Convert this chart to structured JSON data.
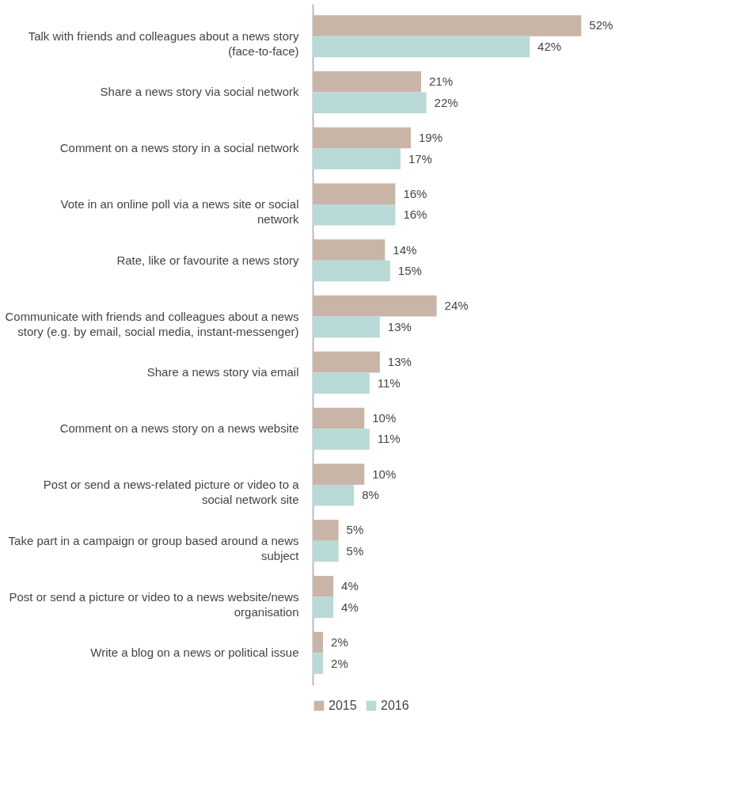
{
  "chart_data": {
    "type": "bar",
    "orientation": "horizontal",
    "data_labels": true,
    "legend": "bottom",
    "grid": false,
    "categories": [
      "Talk with friends and colleagues about a news story (face-to-face)",
      "Share a news story via social network",
      "Comment on a news story in a social network",
      "Vote in an online poll via a news site or social network",
      "Rate, like or favourite a news story",
      "Communicate with friends and colleagues about a news story (e.g. by email, social media, instant-messenger)",
      "Share a news story via email",
      "Comment on a news story on a news website",
      "Post or send a news-related picture or video to a social network site",
      "Take part in a campaign or group based around a news subject",
      "Post or send a picture or video to a news website/news organisation",
      "Write a blog on a news or political issue"
    ],
    "series": [
      {
        "name": "2015",
        "color": "#c9b5a7",
        "values": [
          52,
          21,
          19,
          16,
          14,
          24,
          13,
          10,
          10,
          5,
          4,
          2
        ],
        "value_labels": [
          "52%",
          "21%",
          "19%",
          "16%",
          "14%",
          "24%",
          "13%",
          "10%",
          "10%",
          "5%",
          "4%",
          "2%"
        ]
      },
      {
        "name": "2016",
        "color": "#b9d9d6",
        "values": [
          42,
          22,
          17,
          16,
          15,
          13,
          11,
          11,
          8,
          5,
          4,
          2
        ],
        "value_labels": [
          "42%",
          "22%",
          "17%",
          "16%",
          "15%",
          "13%",
          "11%",
          "11%",
          "8%",
          "5%",
          "4%",
          "2%"
        ]
      }
    ]
  }
}
